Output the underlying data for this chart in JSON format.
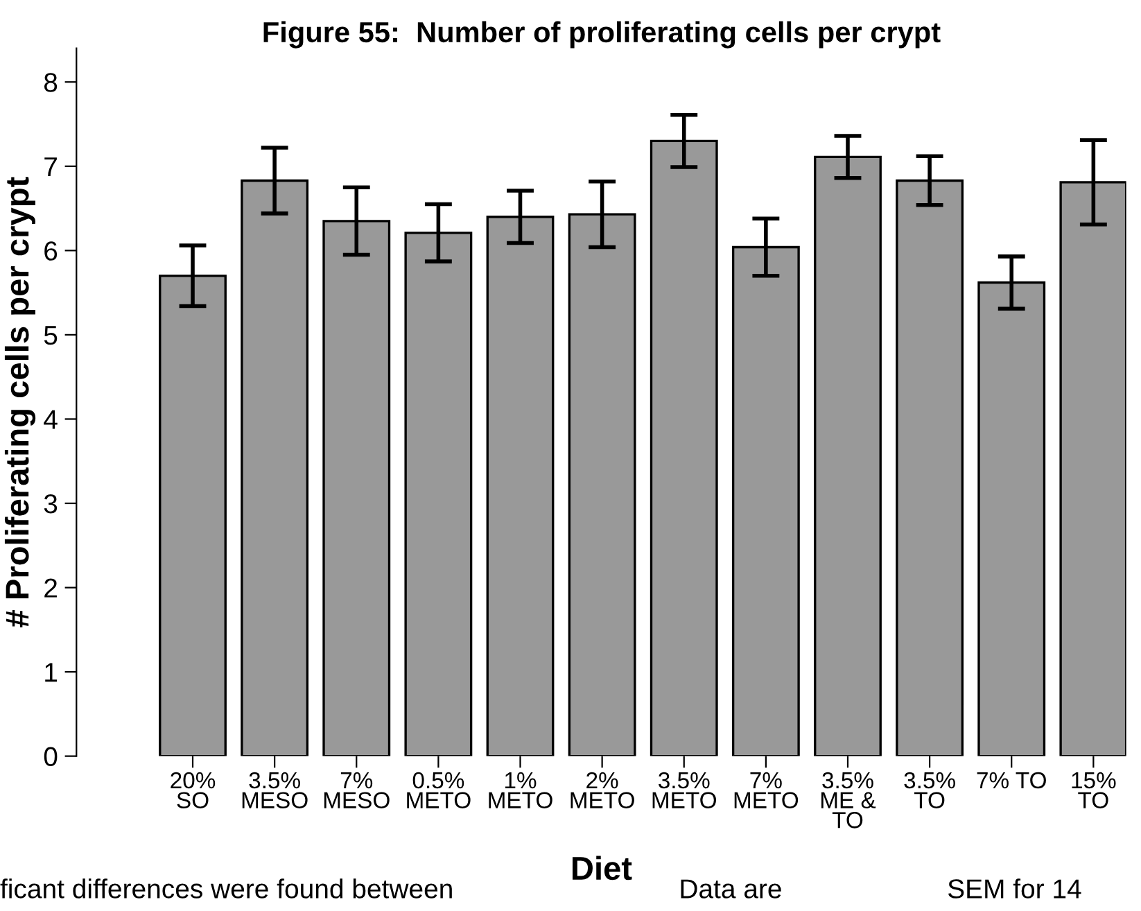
{
  "chart_data": {
    "type": "bar",
    "title": "Figure 55:  Number of proliferating cells per crypt",
    "xlabel": "Diet",
    "ylabel": "# Proliferating cells per crypt",
    "categories": [
      "20%\nSO",
      "3.5%\nMESO",
      "7%\nMESO",
      "0.5%\nMETO",
      "1%\nMETO",
      "2%\nMETO",
      "3.5%\nMETO",
      "7%\nMETO",
      "3.5%\nME &\nTO",
      "3.5%\nTO",
      "7% TO",
      "15%\nTO"
    ],
    "values": [
      5.7,
      6.83,
      6.35,
      6.21,
      6.4,
      6.43,
      7.3,
      6.04,
      7.11,
      6.83,
      5.62,
      6.81
    ],
    "errors": [
      0.36,
      0.39,
      0.4,
      0.34,
      0.31,
      0.39,
      0.31,
      0.34,
      0.25,
      0.29,
      0.31,
      0.5
    ],
    "color": "#999999",
    "ylim": [
      0,
      8.4
    ],
    "yticks": [
      0,
      1,
      2,
      3,
      4,
      5,
      6,
      7,
      8
    ],
    "grid": false,
    "annotations": [
      "ficant differences were found between",
      "Data are",
      "SEM for 14"
    ]
  }
}
